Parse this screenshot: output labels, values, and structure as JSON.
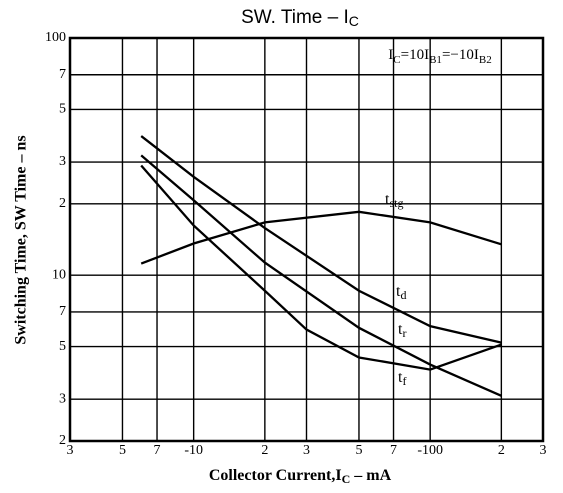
{
  "chart_data": {
    "type": "line",
    "title_parts": [
      "SW. Time  –  I",
      "C"
    ],
    "annotation_parts": [
      "I",
      "C",
      "=10I",
      "B1",
      "=−10I",
      "B2"
    ],
    "x_label_parts": [
      "Collector Current,I",
      "C",
      " – mA"
    ],
    "y_label": "Switching Time, SW Time – ns",
    "x_log": true,
    "y_log": true,
    "grid": true,
    "xlim": [
      3,
      300
    ],
    "ylim": [
      2,
      100
    ],
    "xticks": [
      3,
      5,
      7,
      {
        "value": 10,
        "label": "-10"
      },
      {
        "value": 20,
        "label": "2"
      },
      {
        "value": 30,
        "label": "3"
      },
      {
        "value": 50,
        "label": "5"
      },
      {
        "value": 70,
        "label": "7"
      },
      {
        "value": 100,
        "label": "-100"
      },
      {
        "value": 200,
        "label": "2"
      },
      {
        "value": 300,
        "label": "3"
      }
    ],
    "yticks": [
      2,
      3,
      5,
      7,
      10,
      {
        "value": 20,
        "label": "2"
      },
      {
        "value": 30,
        "label": "3"
      },
      {
        "value": 50,
        "label": "5"
      },
      {
        "value": 70,
        "label": "7"
      },
      100
    ],
    "series": [
      {
        "name_parts": [
          "t",
          "stg"
        ],
        "color": "#000000",
        "x": [
          6,
          10,
          20,
          50,
          100,
          200
        ],
        "values": [
          11.2,
          13.6,
          16.7,
          18.5,
          16.7,
          13.5
        ]
      },
      {
        "name_parts": [
          "t",
          "d"
        ],
        "color": "#000000",
        "x": [
          6,
          10,
          20,
          50,
          100,
          200
        ],
        "values": [
          38.6,
          26,
          15.8,
          8.6,
          6.1,
          5.2
        ]
      },
      {
        "name_parts": [
          "t",
          "r"
        ],
        "color": "#000000",
        "x": [
          6,
          10,
          20,
          50,
          100,
          200
        ],
        "values": [
          32,
          20.7,
          11.3,
          6.0,
          4.2,
          3.1
        ]
      },
      {
        "name_parts": [
          "t",
          "f"
        ],
        "color": "#000000",
        "x": [
          6,
          10,
          20,
          30,
          50,
          100,
          200
        ],
        "values": [
          29,
          16.2,
          8.6,
          5.9,
          4.5,
          4.0,
          5.1
        ]
      }
    ]
  }
}
